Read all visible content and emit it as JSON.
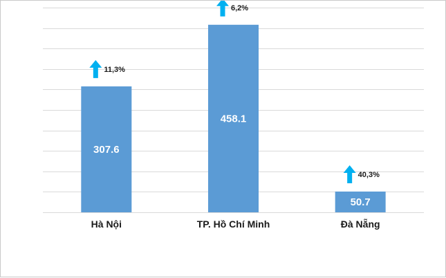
{
  "chart_data": {
    "type": "bar",
    "categories": [
      "Hà Nội",
      "TP. Hồ Chí Minh",
      "Đà Nẵng"
    ],
    "values": [
      307.6,
      458.1,
      50.7
    ],
    "value_labels": [
      "307.6",
      "458.1",
      "50.7"
    ],
    "growth_labels": [
      "11,3%",
      "6,2%",
      "40,3%"
    ],
    "growth_direction": "up",
    "ylim": [
      0,
      500
    ],
    "grid": true,
    "gridline_step": 50,
    "bar_color": "#5b9bd5",
    "arrow_color": "#00b0f0",
    "gridline_color": "#d9d9d9"
  }
}
